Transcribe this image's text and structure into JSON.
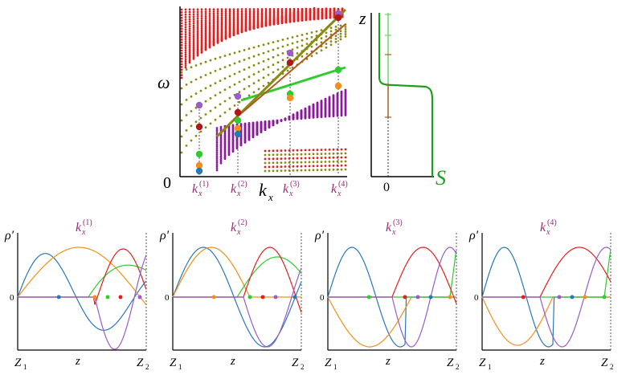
{
  "top_diagram": {
    "omega_label": "ω",
    "origin_label": "0",
    "kx_axis_label": "k",
    "kx_axis_sub": "x",
    "kx_ticks": [
      {
        "base": "k",
        "sub": "x",
        "sup": "(1)"
      },
      {
        "base": "k",
        "sub": "x",
        "sup": "(2)"
      },
      {
        "base": "k",
        "sub": "x",
        "sup": "(3)"
      },
      {
        "base": "k",
        "sub": "x",
        "sup": "(4)"
      }
    ]
  },
  "profile_diagram": {
    "z_label": "z",
    "s_label": "S",
    "zero_label": "0"
  },
  "bottom_panels": [
    {
      "title_base": "k",
      "title_sub": "x",
      "title_sup": "(1)",
      "y_label": "ρ′",
      "zero_label": "0",
      "z1": "Z",
      "z1_sub": "1",
      "z_mid": "z",
      "z2": "Z",
      "z2_sub": "2"
    },
    {
      "title_base": "k",
      "title_sub": "x",
      "title_sup": "(2)",
      "y_label": "ρ′",
      "zero_label": "0",
      "z1": "Z",
      "z1_sub": "1",
      "z_mid": "z",
      "z2": "Z",
      "z2_sub": "2"
    },
    {
      "title_base": "k",
      "title_sub": "x",
      "title_sup": "(3)",
      "y_label": "ρ′",
      "zero_label": "0",
      "z1": "Z",
      "z1_sub": "1",
      "z_mid": "z",
      "z2": "Z",
      "z2_sub": "2"
    },
    {
      "title_base": "k",
      "title_sub": "x",
      "title_sup": "(4)",
      "y_label": "ρ′",
      "zero_label": "0",
      "z1": "Z",
      "z1_sub": "1",
      "z_mid": "z",
      "z2": "Z",
      "z2_sub": "2"
    }
  ],
  "colors": {
    "red": "#e02020",
    "olive": "#8a8a10",
    "purple": "#8a1a9a",
    "green": "#2ecc2e",
    "blue": "#2a78b8",
    "orange": "#f0901a",
    "violet": "#9a5cc8",
    "dark_red": "#b01818",
    "brown": "#b05a20",
    "magenta_label": "#9a2a7a"
  }
}
